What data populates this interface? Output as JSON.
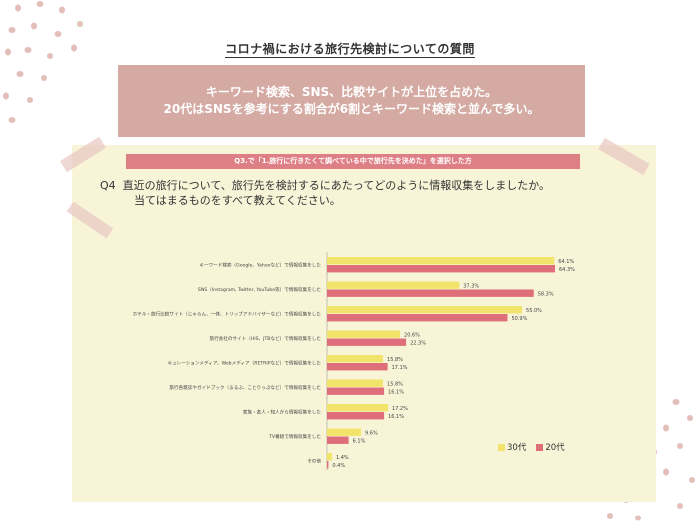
{
  "page_title": "コロナ禍における旅行先検討についての質問",
  "summary": {
    "line1": "キーワード検索、SNS、比較サイトが上位を占めた。",
    "line2": "20代はSNSを参考にする割合が6割とキーワード検索と並んで多い。"
  },
  "condition_banner": "Q3.で「1.旅行に行きたくて調べている中で旅行先を決めた」を選択した方",
  "question": {
    "number": "Q4",
    "line1": "直近の旅行について、旅行先を検討するにあたってどのように情報収集をしましたか。",
    "line2": "当てはまるものをすべて教えてください。"
  },
  "colors": {
    "series_30s": "#f2e46a",
    "series_20s": "#de6f7a",
    "panel": "#f8f4d8",
    "summary_box": "#d4aaa3",
    "dots": "#e3bfb9"
  },
  "chart_data": {
    "type": "bar",
    "orientation": "horizontal",
    "categories": [
      "キーワード検索（Google、Yahooなど）で情報収集をした",
      "SNS（Instagram, Twitter, YouTube等）で情報収集をした",
      "ホテル・旅行比較サイト（じゃらん、一休、トリップアドバイザーなど）で情報収集をした",
      "旅行会社のサイト（HIS、JTBなど）で情報収集をした",
      "キュレーションメディア、Webメディア（RETRIPなど）で情報収集をした",
      "旅行各雑誌やガイドブック（るるぶ、ことりっぷなど）で情報収集をした",
      "家族・友人・知人から情報収集をした",
      "TV番組で情報収集をした",
      "その他"
    ],
    "series": [
      {
        "name": "30代",
        "values": [
          64.1,
          37.3,
          55.0,
          20.6,
          15.8,
          15.8,
          17.2,
          9.6,
          1.4
        ],
        "labels": [
          "64.1%",
          "37.3%",
          "55.0%",
          "20.6%",
          "15.8%",
          "15.8%",
          "17.2%",
          "9.6%",
          "1.4%"
        ]
      },
      {
        "name": "20代",
        "values": [
          64.3,
          58.3,
          50.9,
          22.3,
          17.1,
          16.1,
          16.1,
          6.1,
          0.4
        ],
        "labels": [
          "64.3%",
          "58.3%",
          "50.9%",
          "22.3%",
          "17.1%",
          "16.1%",
          "16.1%",
          "6.1%",
          "0.4%"
        ]
      }
    ],
    "xlim": [
      0,
      70
    ],
    "grid": false,
    "legend": "bottom-right"
  }
}
